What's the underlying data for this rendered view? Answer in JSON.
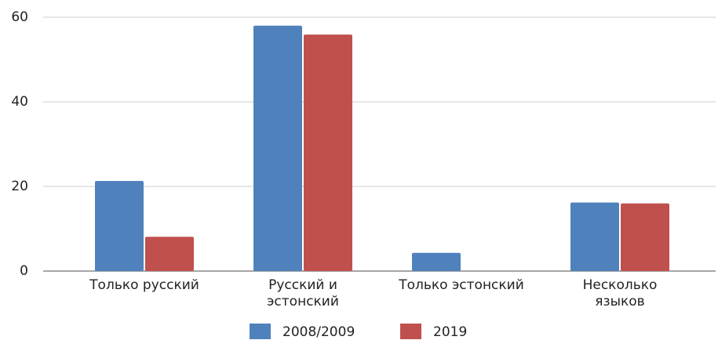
{
  "chart_data": {
    "type": "bar",
    "categories": [
      "Только русский",
      "Русский и эстонский",
      "Только эстонский",
      "Несколько языков"
    ],
    "series": [
      {
        "name": "2008/2009",
        "color": "#4f81bd",
        "values": [
          21.3,
          58,
          4.3,
          16.2
        ]
      },
      {
        "name": "2019",
        "color": "#c0504d",
        "values": [
          8.1,
          55.9,
          null,
          16
        ]
      }
    ],
    "ylim": [
      0,
      60
    ],
    "yticks": [
      0,
      20,
      40,
      60
    ],
    "grid": true,
    "legend": "bottom"
  }
}
